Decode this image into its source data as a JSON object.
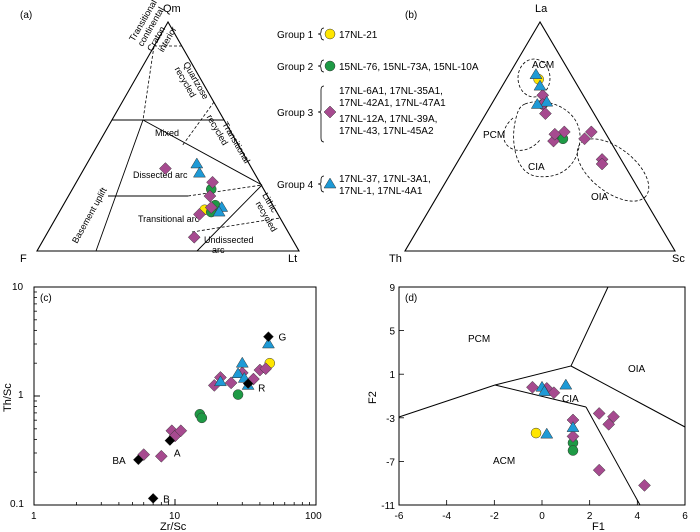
{
  "colors": {
    "group1": "#ffe600",
    "group2": "#1e9a45",
    "group3": "#a64a8f",
    "group4": "#1e9ad6",
    "reference": "#000000"
  },
  "legend": {
    "groups": [
      {
        "name": "Group 1",
        "samples": [
          "17NL-21"
        ],
        "marker": "circle",
        "color": "#ffe600"
      },
      {
        "name": "Group 2",
        "samples": [
          "15NL-76, 15NL-73A, 15NL-10A"
        ],
        "marker": "circle",
        "color": "#1e9a45"
      },
      {
        "name": "Group 3",
        "samples": [
          "17NL-6A1, 17NL-35A1,",
          "17NL-42A1, 17NL-47A1",
          "17NL-12A, 17NL-39A,",
          "17NL-43, 17NL-45A2"
        ],
        "marker": "diamond",
        "color": "#a64a8f"
      },
      {
        "name": "Group 4",
        "samples": [
          "17NL-37, 17NL-3A1,",
          "17NL-1, 17NL-4A1"
        ],
        "marker": "triangle",
        "color": "#1e9ad6"
      }
    ]
  },
  "chart_data": [
    {
      "panel": "(a)",
      "type": "scatter",
      "diagram": "ternary",
      "vertices": {
        "top": "Qm",
        "left": "F",
        "right": "Lt"
      },
      "fields": [
        "Craton interior",
        "Transitional continental",
        "Basement uplift",
        "Quartzose recycled",
        "Mixed",
        "Transitional recycled",
        "Dissected arc",
        "Transitional arc",
        "Lithic recycled",
        "Undissected arc"
      ],
      "series": [
        {
          "name": "Group 1",
          "points": [
            {
              "Qm": 18,
              "F": 27,
              "Lt": 55
            }
          ]
        },
        {
          "name": "Group 2",
          "points": [
            {
              "Qm": 27,
              "F": 20,
              "Lt": 53
            },
            {
              "Qm": 20,
              "F": 22,
              "Lt": 58
            },
            {
              "Qm": 17,
              "F": 25,
              "Lt": 58
            }
          ]
        },
        {
          "name": "Group 3",
          "points": [
            {
              "Qm": 36,
              "F": 33,
              "Lt": 31
            },
            {
              "Qm": 30,
              "F": 18,
              "Lt": 52
            },
            {
              "Qm": 24,
              "F": 22,
              "Lt": 54
            },
            {
              "Qm": 19,
              "F": 24,
              "Lt": 57
            },
            {
              "Qm": 16,
              "F": 30,
              "Lt": 54
            },
            {
              "Qm": 6,
              "F": 37,
              "Lt": 57
            }
          ]
        },
        {
          "name": "Group 4",
          "points": [
            {
              "Qm": 38,
              "F": 20,
              "Lt": 42
            },
            {
              "Qm": 34,
              "F": 21,
              "Lt": 45
            },
            {
              "Qm": 19,
              "F": 20,
              "Lt": 61
            },
            {
              "Qm": 17,
              "F": 22,
              "Lt": 61
            }
          ]
        }
      ]
    },
    {
      "panel": "(b)",
      "type": "scatter",
      "diagram": "ternary",
      "vertices": {
        "top": "La",
        "left": "Th",
        "right": "Sc"
      },
      "fields": [
        "ACM",
        "PCM",
        "CIA",
        "OIA"
      ],
      "series": [
        {
          "name": "Group 1",
          "points": [
            {
              "La": 75,
              "Th": 13,
              "Sc": 12
            }
          ]
        },
        {
          "name": "Group 2",
          "points": [
            {
              "La": 64,
              "Th": 17,
              "Sc": 19
            },
            {
              "La": 50,
              "Th": 17,
              "Sc": 33
            },
            {
              "La": 49,
              "Th": 17,
              "Sc": 34
            }
          ]
        },
        {
          "name": "Group 3",
          "points": [
            {
              "La": 68,
              "Th": 15,
              "Sc": 17
            },
            {
              "La": 64,
              "Th": 17,
              "Sc": 19
            },
            {
              "La": 60,
              "Th": 18,
              "Sc": 22
            },
            {
              "La": 52,
              "Th": 15,
              "Sc": 33
            },
            {
              "La": 48,
              "Th": 21,
              "Sc": 31
            },
            {
              "La": 51,
              "Th": 19,
              "Sc": 30
            },
            {
              "La": 52,
              "Th": 5,
              "Sc": 43
            },
            {
              "La": 49,
              "Th": 9,
              "Sc": 42
            },
            {
              "La": 40,
              "Th": 7,
              "Sc": 53
            },
            {
              "La": 38,
              "Th": 8,
              "Sc": 54
            }
          ]
        },
        {
          "name": "Group 4",
          "points": [
            {
              "La": 77,
              "Th": 13,
              "Sc": 10
            },
            {
              "La": 72,
              "Th": 14,
              "Sc": 14
            },
            {
              "La": 65,
              "Th": 15,
              "Sc": 20
            },
            {
              "La": 64,
              "Th": 19,
              "Sc": 17
            }
          ]
        }
      ]
    },
    {
      "panel": "(c)",
      "type": "scatter",
      "xlabel": "Zr/Sc",
      "ylabel": "Th/Sc",
      "xscale": "log",
      "yscale": "log",
      "xlim": [
        1,
        100
      ],
      "ylim": [
        0.1,
        10
      ],
      "xticks": [
        "1",
        "10",
        "100"
      ],
      "yticks": [
        "0.1",
        "1",
        "10"
      ],
      "series": [
        {
          "name": "Group 1",
          "points": [
            [
              47,
              2.0
            ]
          ]
        },
        {
          "name": "Group 2",
          "points": [
            [
              15,
              0.68
            ],
            [
              15.5,
              0.63
            ],
            [
              28,
              1.03
            ]
          ]
        },
        {
          "name": "Group 3",
          "points": [
            [
              6,
              0.29
            ],
            [
              8,
              0.28
            ],
            [
              9.5,
              0.48
            ],
            [
              10,
              0.43
            ],
            [
              11,
              0.48
            ],
            [
              19,
              1.25
            ],
            [
              21,
              1.48
            ],
            [
              25,
              1.32
            ],
            [
              30,
              1.63
            ],
            [
              36,
              1.43
            ],
            [
              40,
              1.73
            ],
            [
              44,
              1.78
            ]
          ]
        },
        {
          "name": "Group 4",
          "points": [
            [
              21,
              1.35
            ],
            [
              28,
              1.6
            ],
            [
              30,
              2.0
            ],
            [
              31,
              1.45
            ],
            [
              33,
              1.25
            ],
            [
              46,
              3.0
            ]
          ]
        }
      ],
      "references": [
        {
          "label": "BA",
          "x": 5.5,
          "y": 0.26
        },
        {
          "label": "A",
          "x": 9.2,
          "y": 0.39
        },
        {
          "label": "B",
          "x": 7,
          "y": 0.115
        },
        {
          "label": "R",
          "x": 33,
          "y": 1.3
        },
        {
          "label": "G",
          "x": 46,
          "y": 3.5
        }
      ]
    },
    {
      "panel": "(d)",
      "type": "scatter",
      "xlabel": "F1",
      "ylabel": "F2",
      "xlim": [
        -6,
        6
      ],
      "ylim": [
        -11,
        9
      ],
      "xticks": [
        -6,
        -4,
        -2,
        0,
        2,
        4,
        6
      ],
      "yticks": [
        -11,
        -7,
        -3,
        1,
        5,
        9
      ],
      "fields": [
        "PCM",
        "OIA",
        "CIA",
        "ACM"
      ],
      "series": [
        {
          "name": "Group 1",
          "points": [
            [
              -0.25,
              -4.4
            ]
          ]
        },
        {
          "name": "Group 2",
          "points": [
            [
              1.3,
              -5.3
            ],
            [
              1.3,
              -6.0
            ]
          ]
        },
        {
          "name": "Group 3",
          "points": [
            [
              -0.4,
              -0.2
            ],
            [
              0.2,
              -0.3
            ],
            [
              0.5,
              -0.7
            ],
            [
              1.3,
              -3.2
            ],
            [
              1.3,
              -4.7
            ],
            [
              2.4,
              -2.6
            ],
            [
              2.8,
              -3.6
            ],
            [
              3.0,
              -2.9
            ],
            [
              2.4,
              -7.8
            ],
            [
              4.3,
              -9.2
            ]
          ]
        },
        {
          "name": "Group 4",
          "points": [
            [
              0.0,
              -0.2
            ],
            [
              0.1,
              -0.6
            ],
            [
              1.0,
              0.0
            ],
            [
              1.3,
              -3.9
            ],
            [
              0.2,
              -4.5
            ]
          ]
        }
      ]
    }
  ],
  "text": {
    "panel_a": "(a)",
    "panel_b": "(b)",
    "panel_c": "(c)",
    "panel_d": "(d)",
    "a_top": "Qm",
    "a_left": "F",
    "a_right": "Lt",
    "b_top": "La",
    "b_left": "Th",
    "b_right": "Sc",
    "f_craton": "Craton",
    "f_interior": "interior",
    "f_transitional": "Transitional",
    "f_continental": "continental",
    "f_quartzose": "Quartzose",
    "f_recycled": "recycled",
    "f_mixed": "Mixed",
    "f_trans_recycled_1": "Transitional",
    "f_trans_recycled_2": "recycled",
    "f_basement": "Basement uplift",
    "f_dissected": "Dissected arc",
    "f_trans_arc": "Transitional arc",
    "f_lithic": "Lithic",
    "f_lithic_recycled": "recycled",
    "f_undissected": "Undissected",
    "f_arc": "arc",
    "b_acm": "ACM",
    "b_pcm": "PCM",
    "b_cia": "CIA",
    "b_oia": "OIA",
    "c_xlabel": "Zr/Sc",
    "c_ylabel": "Th/Sc",
    "c_x1": "1",
    "c_x10": "10",
    "c_x100": "100",
    "c_y01": "0.1",
    "c_y1": "1",
    "c_y10": "10",
    "d_xlabel": "F1",
    "d_ylabel": "F2",
    "d_pcm": "PCM",
    "d_oia": "OIA",
    "d_cia": "CIA",
    "d_acm": "ACM",
    "ref_ba": "BA",
    "ref_a": "A",
    "ref_b": "B",
    "ref_r": "R",
    "ref_g": "G"
  }
}
